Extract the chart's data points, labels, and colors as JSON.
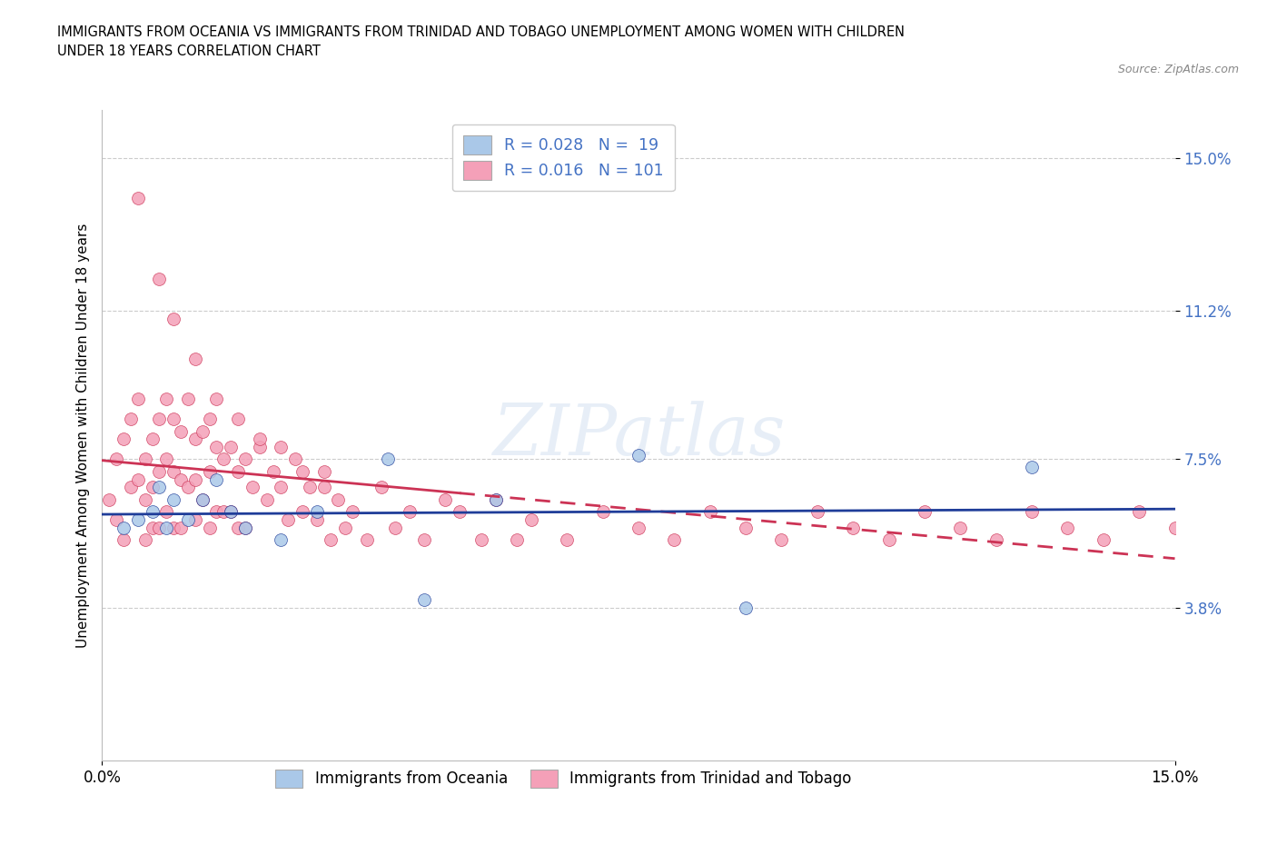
{
  "title": "IMMIGRANTS FROM OCEANIA VS IMMIGRANTS FROM TRINIDAD AND TOBAGO UNEMPLOYMENT AMONG WOMEN WITH CHILDREN\nUNDER 18 YEARS CORRELATION CHART",
  "source": "Source: ZipAtlas.com",
  "ylabel": "Unemployment Among Women with Children Under 18 years",
  "xlim": [
    0.0,
    0.15
  ],
  "ylim": [
    0.0,
    0.162
  ],
  "xtick_positions": [
    0.0,
    0.15
  ],
  "xtick_labels": [
    "0.0%",
    "15.0%"
  ],
  "ytick_values": [
    0.038,
    0.075,
    0.112,
    0.15
  ],
  "ytick_labels": [
    "3.8%",
    "7.5%",
    "11.2%",
    "15.0%"
  ],
  "watermark": "ZIPatlas",
  "oceania_scatter_color": "#aac8e8",
  "oceania_line_color": "#1f3d99",
  "tt_scatter_color": "#f4a0b8",
  "tt_line_color": "#cc3355",
  "oceania_R": 0.028,
  "oceania_N": 19,
  "tt_R": 0.016,
  "tt_N": 101,
  "oceania_x": [
    0.003,
    0.005,
    0.007,
    0.008,
    0.009,
    0.01,
    0.012,
    0.014,
    0.016,
    0.018,
    0.02,
    0.025,
    0.03,
    0.04,
    0.045,
    0.055,
    0.075,
    0.09,
    0.13
  ],
  "oceania_y": [
    0.058,
    0.06,
    0.062,
    0.068,
    0.058,
    0.065,
    0.06,
    0.065,
    0.07,
    0.062,
    0.058,
    0.055,
    0.062,
    0.075,
    0.04,
    0.065,
    0.076,
    0.038,
    0.073
  ],
  "tt_x": [
    0.001,
    0.002,
    0.002,
    0.003,
    0.003,
    0.004,
    0.004,
    0.005,
    0.005,
    0.006,
    0.006,
    0.006,
    0.007,
    0.007,
    0.007,
    0.008,
    0.008,
    0.008,
    0.009,
    0.009,
    0.009,
    0.01,
    0.01,
    0.01,
    0.011,
    0.011,
    0.011,
    0.012,
    0.012,
    0.013,
    0.013,
    0.013,
    0.014,
    0.014,
    0.015,
    0.015,
    0.015,
    0.016,
    0.016,
    0.017,
    0.017,
    0.018,
    0.018,
    0.019,
    0.019,
    0.02,
    0.02,
    0.021,
    0.022,
    0.023,
    0.024,
    0.025,
    0.026,
    0.027,
    0.028,
    0.029,
    0.03,
    0.031,
    0.032,
    0.033,
    0.034,
    0.035,
    0.037,
    0.039,
    0.041,
    0.043,
    0.045,
    0.048,
    0.05,
    0.053,
    0.055,
    0.058,
    0.06,
    0.065,
    0.07,
    0.075,
    0.08,
    0.085,
    0.09,
    0.095,
    0.1,
    0.105,
    0.11,
    0.115,
    0.12,
    0.125,
    0.13,
    0.135,
    0.14,
    0.145,
    0.15,
    0.005,
    0.008,
    0.01,
    0.013,
    0.016,
    0.019,
    0.022,
    0.025,
    0.028,
    0.031
  ],
  "tt_y": [
    0.065,
    0.075,
    0.06,
    0.08,
    0.055,
    0.085,
    0.068,
    0.09,
    0.07,
    0.075,
    0.065,
    0.055,
    0.08,
    0.068,
    0.058,
    0.085,
    0.072,
    0.058,
    0.09,
    0.075,
    0.062,
    0.085,
    0.072,
    0.058,
    0.082,
    0.07,
    0.058,
    0.09,
    0.068,
    0.08,
    0.07,
    0.06,
    0.082,
    0.065,
    0.085,
    0.072,
    0.058,
    0.078,
    0.062,
    0.075,
    0.062,
    0.078,
    0.062,
    0.072,
    0.058,
    0.075,
    0.058,
    0.068,
    0.078,
    0.065,
    0.072,
    0.068,
    0.06,
    0.075,
    0.062,
    0.068,
    0.06,
    0.072,
    0.055,
    0.065,
    0.058,
    0.062,
    0.055,
    0.068,
    0.058,
    0.062,
    0.055,
    0.065,
    0.062,
    0.055,
    0.065,
    0.055,
    0.06,
    0.055,
    0.062,
    0.058,
    0.055,
    0.062,
    0.058,
    0.055,
    0.062,
    0.058,
    0.055,
    0.062,
    0.058,
    0.055,
    0.062,
    0.058,
    0.055,
    0.062,
    0.058,
    0.14,
    0.12,
    0.11,
    0.1,
    0.09,
    0.085,
    0.08,
    0.078,
    0.072,
    0.068
  ],
  "legend_oceania_label": "R = 0.028   N =  19",
  "legend_tt_label": "R = 0.016   N = 101",
  "bottom_legend_oceania": "Immigrants from Oceania",
  "bottom_legend_tt": "Immigrants from Trinidad and Tobago"
}
